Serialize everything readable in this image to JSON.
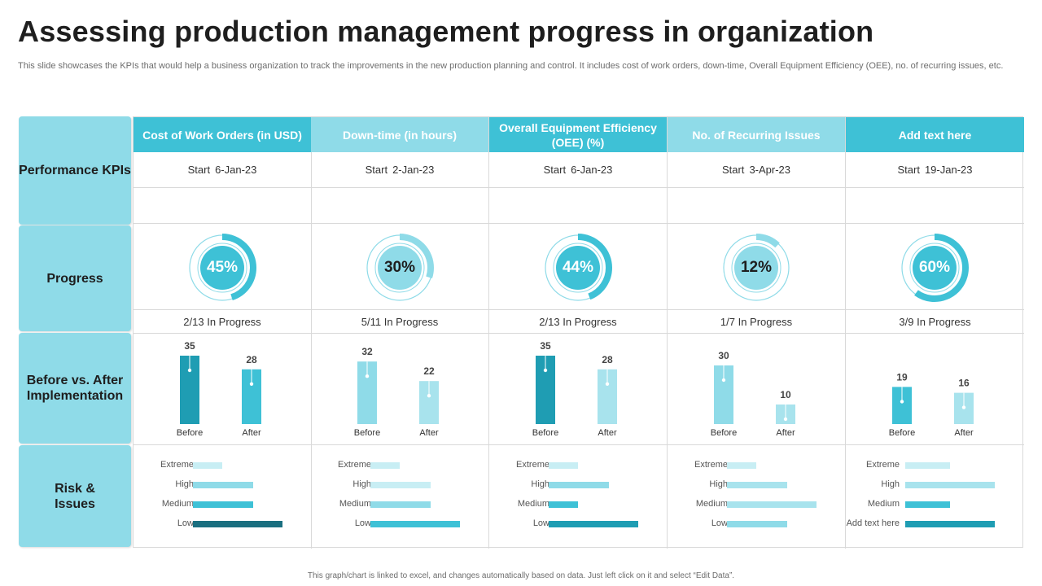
{
  "title": "Assessing production management progress in organization",
  "subtitle": "This slide showcases the KPIs that would help a business organization to track the improvements in the new production planning and control. It includes cost of work orders, down-time, Overall Equipment Efficiency (OEE),  no. of recurring issues, etc.",
  "footer": "This graph/chart is linked to excel, and changes automatically based on data. Just left click on it and select “Edit Data”.",
  "row_labels": {
    "kpis": "Performance KPIs",
    "progress": "Progress",
    "before_after": "Before vs. After Implementation",
    "risk": "Risk & Issues"
  },
  "colors": {
    "dark_teal": "#1f9db3",
    "teal": "#3ec1d6",
    "light_teal": "#8fdbe8",
    "pale_teal": "#c8eef4",
    "navy_teal": "#1a6f80"
  },
  "start_label": "Start",
  "bar_labels": {
    "before": "Before",
    "after": "After"
  },
  "risk_levels": [
    "Extreme",
    "High",
    "Medium",
    "Low"
  ],
  "columns": [
    {
      "header": "Cost of Work Orders (in USD)",
      "header_style": "dark",
      "start_date": "6-Jan-23",
      "progress_pct": 45,
      "progress_label": "45%",
      "progress_text": "2/13 In Progress",
      "before": 35,
      "after": 28,
      "before_color": "#1f9db3",
      "after_color": "#3ec1d6",
      "risk_labels": [
        "Extreme",
        "High",
        "Medium",
        "Low"
      ],
      "risk_values": [
        0.33,
        0.67,
        0.67,
        1.0
      ],
      "risk_colors": [
        "#c8eef4",
        "#8fdbe8",
        "#3ec1d6",
        "#1a6f80"
      ]
    },
    {
      "header": "Down-time (in hours)",
      "header_style": "light",
      "start_date": "2-Jan-23",
      "progress_pct": 30,
      "progress_label": "30%",
      "progress_text": "5/11 In Progress",
      "before": 32,
      "after": 22,
      "before_color": "#8fdbe8",
      "after_color": "#a8e3ed",
      "risk_labels": [
        "Extreme",
        "High",
        "Medium",
        "Low"
      ],
      "risk_values": [
        0.33,
        0.67,
        0.67,
        1.0
      ],
      "risk_colors": [
        "#c8eef4",
        "#c8eef4",
        "#8fdbe8",
        "#3ec1d6"
      ]
    },
    {
      "header": "Overall Equipment Efficiency (OEE) (%)",
      "header_style": "dark",
      "start_date": "6-Jan-23",
      "progress_pct": 44,
      "progress_label": "44%",
      "progress_text": "2/13 In Progress",
      "before": 35,
      "after": 28,
      "before_color": "#1f9db3",
      "after_color": "#a8e3ed",
      "risk_labels": [
        "Extreme",
        "High",
        "Medium",
        "Low"
      ],
      "risk_values": [
        0.33,
        0.67,
        0.33,
        1.0
      ],
      "risk_colors": [
        "#c8eef4",
        "#8fdbe8",
        "#3ec1d6",
        "#1f9db3"
      ]
    },
    {
      "header": "No. of Recurring Issues",
      "header_style": "light",
      "start_date": "3-Apr-23",
      "progress_pct": 12,
      "progress_label": "12%",
      "progress_text": "1/7 In Progress",
      "before": 30,
      "after": 10,
      "before_color": "#8fdbe8",
      "after_color": "#a8e3ed",
      "risk_labels": [
        "Extreme",
        "High",
        "Medium",
        "Low"
      ],
      "risk_values": [
        0.33,
        0.67,
        1.0,
        0.67
      ],
      "risk_colors": [
        "#c8eef4",
        "#a8e3ed",
        "#a8e3ed",
        "#8fdbe8"
      ]
    },
    {
      "header": "Add text here",
      "header_style": "dark",
      "start_date": "19-Jan-23",
      "progress_pct": 60,
      "progress_label": "60%",
      "progress_text": "3/9 In Progress",
      "before": 19,
      "after": 16,
      "before_color": "#3ec1d6",
      "after_color": "#a8e3ed",
      "risk_labels": [
        "Extreme",
        "High",
        "Medium",
        "Add text here"
      ],
      "risk_values": [
        0.5,
        1.0,
        0.5,
        1.0
      ],
      "risk_colors": [
        "#c8eef4",
        "#a8e3ed",
        "#3ec1d6",
        "#1f9db3"
      ]
    }
  ]
}
